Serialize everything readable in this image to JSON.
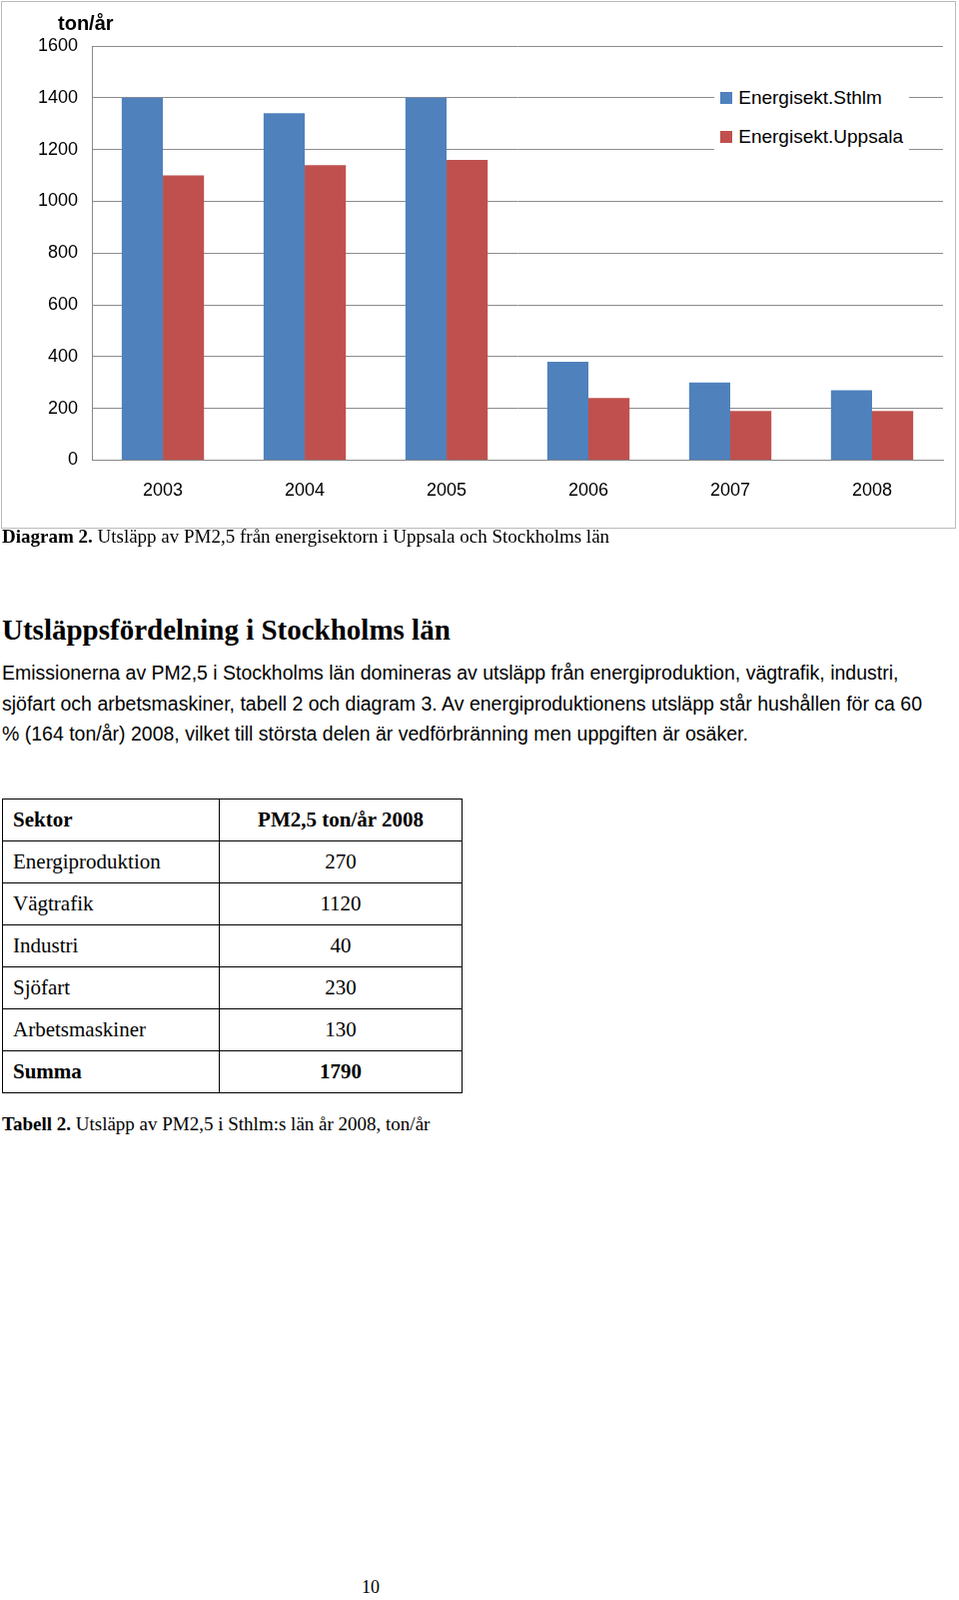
{
  "chart_data": {
    "type": "bar",
    "y_label": "ton/år",
    "categories": [
      "2003",
      "2004",
      "2005",
      "2006",
      "2007",
      "2008"
    ],
    "series": [
      {
        "name": "Energisekt.Sthlm",
        "color": "#4f81bd",
        "values": [
          1400,
          1340,
          1400,
          380,
          300,
          270
        ]
      },
      {
        "name": "Energisekt.Uppsala",
        "color": "#c0504d",
        "values": [
          1100,
          1140,
          1160,
          240,
          190,
          190
        ]
      }
    ],
    "ylim": [
      0,
      1600
    ],
    "yticks": [
      0,
      200,
      400,
      600,
      800,
      1000,
      1200,
      1400,
      1600
    ],
    "grid": true,
    "legend": "top-right"
  },
  "chart_caption": {
    "label": "Diagram 2.",
    "text": "Utsläpp av PM2,5 från energisektorn i Uppsala och Stockholms län"
  },
  "heading": "Utsläppsfördelning i Stockholms län",
  "paragraph": "Emissionerna av PM2,5 i Stockholms län domineras av utsläpp från energiproduktion, vägtrafik, industri, sjöfart och arbetsmaskiner, tabell 2 och diagram 3. Av energiproduktionens utsläpp står hushållen för ca 60 % (164 ton/år) 2008, vilket till största delen är vedförbränning men uppgiften är osäker.",
  "table": {
    "header": [
      "Sektor",
      "PM2,5 ton/år 2008"
    ],
    "rows": [
      [
        "Energiproduktion",
        270
      ],
      [
        "Vägtrafik",
        1120
      ],
      [
        "Industri",
        40
      ],
      [
        "Sjöfart",
        230
      ],
      [
        "Arbetsmaskiner",
        130
      ]
    ],
    "total": [
      "Summa",
      1790
    ]
  },
  "table_caption": {
    "label": "Tabell 2.",
    "text": "Utsläpp av PM2,5 i Sthlm:s län år 2008, ton/år"
  },
  "page_number": "10"
}
